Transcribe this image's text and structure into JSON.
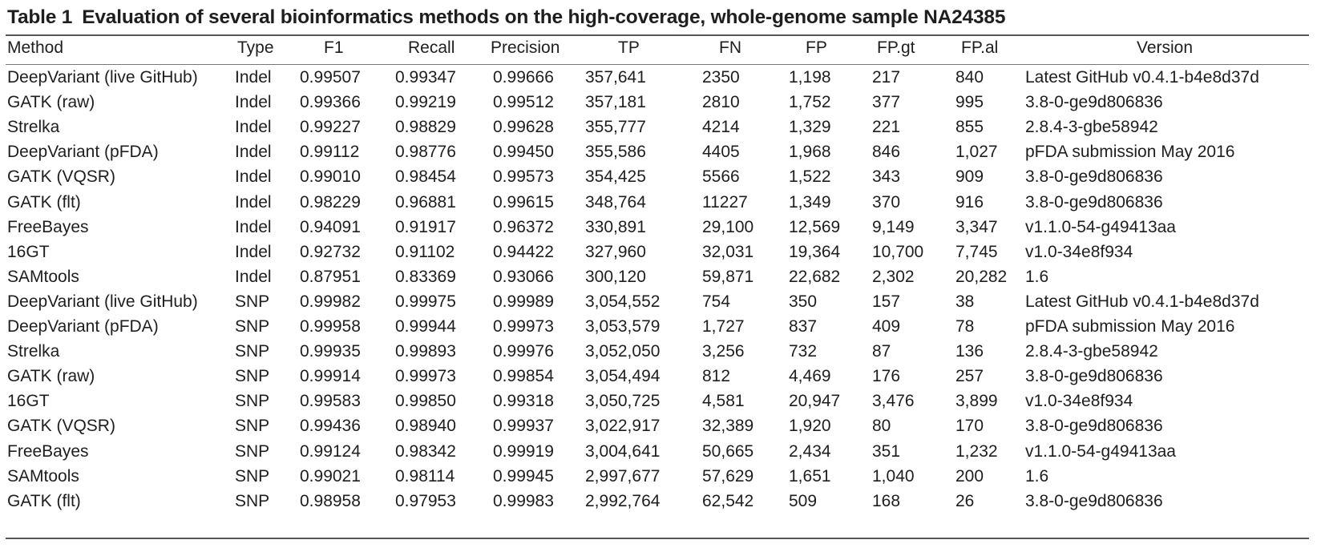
{
  "caption": {
    "label": "Table 1",
    "title": "Evaluation of several bioinformatics methods on the high-coverage, whole-genome sample NA24385"
  },
  "headers": {
    "method": "Method",
    "type": "Type",
    "f1": "F1",
    "recall": "Recall",
    "precision": "Precision",
    "tp": "TP",
    "fn": "FN",
    "fp": "FP",
    "fp_gt": "FP.gt",
    "fp_al": "FP.al",
    "version": "Version"
  },
  "rows": [
    {
      "method": "DeepVariant (live GitHub)",
      "type": "Indel",
      "f1": "0.99507",
      "recall": "0.99347",
      "precision": "0.99666",
      "tp": "357,641",
      "fn": "2350",
      "fp": "1,198",
      "fp_gt": "217",
      "fp_al": "840",
      "version": "Latest GitHub v0.4.1-b4e8d37d"
    },
    {
      "method": "GATK (raw)",
      "type": "Indel",
      "f1": "0.99366",
      "recall": "0.99219",
      "precision": "0.99512",
      "tp": "357,181",
      "fn": "2810",
      "fp": "1,752",
      "fp_gt": "377",
      "fp_al": "995",
      "version": "3.8-0-ge9d806836"
    },
    {
      "method": "Strelka",
      "type": "Indel",
      "f1": "0.99227",
      "recall": "0.98829",
      "precision": "0.99628",
      "tp": "355,777",
      "fn": "4214",
      "fp": "1,329",
      "fp_gt": "221",
      "fp_al": "855",
      "version": "2.8.4-3-gbe58942"
    },
    {
      "method": "DeepVariant (pFDA)",
      "type": "Indel",
      "f1": "0.99112",
      "recall": "0.98776",
      "precision": "0.99450",
      "tp": "355,586",
      "fn": "4405",
      "fp": "1,968",
      "fp_gt": "846",
      "fp_al": "1,027",
      "version": "pFDA submission May 2016"
    },
    {
      "method": "GATK (VQSR)",
      "type": "Indel",
      "f1": "0.99010",
      "recall": "0.98454",
      "precision": "0.99573",
      "tp": "354,425",
      "fn": "5566",
      "fp": "1,522",
      "fp_gt": "343",
      "fp_al": "909",
      "version": "3.8-0-ge9d806836"
    },
    {
      "method": "GATK (flt)",
      "type": "Indel",
      "f1": "0.98229",
      "recall": "0.96881",
      "precision": "0.99615",
      "tp": "348,764",
      "fn": "11227",
      "fp": "1,349",
      "fp_gt": "370",
      "fp_al": "916",
      "version": "3.8-0-ge9d806836"
    },
    {
      "method": "FreeBayes",
      "type": "Indel",
      "f1": "0.94091",
      "recall": "0.91917",
      "precision": "0.96372",
      "tp": "330,891",
      "fn": "29,100",
      "fp": "12,569",
      "fp_gt": "9,149",
      "fp_al": "3,347",
      "version": "v1.1.0-54-g49413aa"
    },
    {
      "method": "16GT",
      "type": "Indel",
      "f1": "0.92732",
      "recall": "0.91102",
      "precision": "0.94422",
      "tp": "327,960",
      "fn": "32,031",
      "fp": "19,364",
      "fp_gt": "10,700",
      "fp_al": "7,745",
      "version": "v1.0-34e8f934"
    },
    {
      "method": "SAMtools",
      "type": "Indel",
      "f1": "0.87951",
      "recall": "0.83369",
      "precision": "0.93066",
      "tp": "300,120",
      "fn": "59,871",
      "fp": "22,682",
      "fp_gt": "2,302",
      "fp_al": "20,282",
      "version": "1.6"
    },
    {
      "method": "DeepVariant (live GitHub)",
      "type": "SNP",
      "f1": "0.99982",
      "recall": "0.99975",
      "precision": "0.99989",
      "tp": "3,054,552",
      "fn": "754",
      "fp": "350",
      "fp_gt": "157",
      "fp_al": "38",
      "version": "Latest GitHub v0.4.1-b4e8d37d"
    },
    {
      "method": "DeepVariant (pFDA)",
      "type": "SNP",
      "f1": "0.99958",
      "recall": "0.99944",
      "precision": "0.99973",
      "tp": "3,053,579",
      "fn": "1,727",
      "fp": "837",
      "fp_gt": "409",
      "fp_al": "78",
      "version": "pFDA submission May 2016"
    },
    {
      "method": "Strelka",
      "type": "SNP",
      "f1": "0.99935",
      "recall": "0.99893",
      "precision": "0.99976",
      "tp": "3,052,050",
      "fn": "3,256",
      "fp": "732",
      "fp_gt": "87",
      "fp_al": "136",
      "version": "2.8.4-3-gbe58942"
    },
    {
      "method": "GATK (raw)",
      "type": "SNP",
      "f1": "0.99914",
      "recall": "0.99973",
      "precision": "0.99854",
      "tp": "3,054,494",
      "fn": "812",
      "fp": "4,469",
      "fp_gt": "176",
      "fp_al": "257",
      "version": "3.8-0-ge9d806836"
    },
    {
      "method": "16GT",
      "type": "SNP",
      "f1": "0.99583",
      "recall": "0.99850",
      "precision": "0.99318",
      "tp": "3,050,725",
      "fn": "4,581",
      "fp": "20,947",
      "fp_gt": "3,476",
      "fp_al": "3,899",
      "version": "v1.0-34e8f934"
    },
    {
      "method": "GATK (VQSR)",
      "type": "SNP",
      "f1": "0.99436",
      "recall": "0.98940",
      "precision": "0.99937",
      "tp": "3,022,917",
      "fn": "32,389",
      "fp": "1,920",
      "fp_gt": "80",
      "fp_al": "170",
      "version": "3.8-0-ge9d806836"
    },
    {
      "method": "FreeBayes",
      "type": "SNP",
      "f1": "0.99124",
      "recall": "0.98342",
      "precision": "0.99919",
      "tp": "3,004,641",
      "fn": "50,665",
      "fp": "2,434",
      "fp_gt": "351",
      "fp_al": "1,232",
      "version": "v1.1.0-54-g49413aa"
    },
    {
      "method": "SAMtools",
      "type": "SNP",
      "f1": "0.99021",
      "recall": "0.98114",
      "precision": "0.99945",
      "tp": "2,997,677",
      "fn": "57,629",
      "fp": "1,651",
      "fp_gt": "1,040",
      "fp_al": "200",
      "version": "1.6"
    },
    {
      "method": "GATK (flt)",
      "type": "SNP",
      "f1": "0.98958",
      "recall": "0.97953",
      "precision": "0.99983",
      "tp": "2,992,764",
      "fn": "62,542",
      "fp": "509",
      "fp_gt": "168",
      "fp_al": "26",
      "version": "3.8-0-ge9d806836"
    }
  ]
}
